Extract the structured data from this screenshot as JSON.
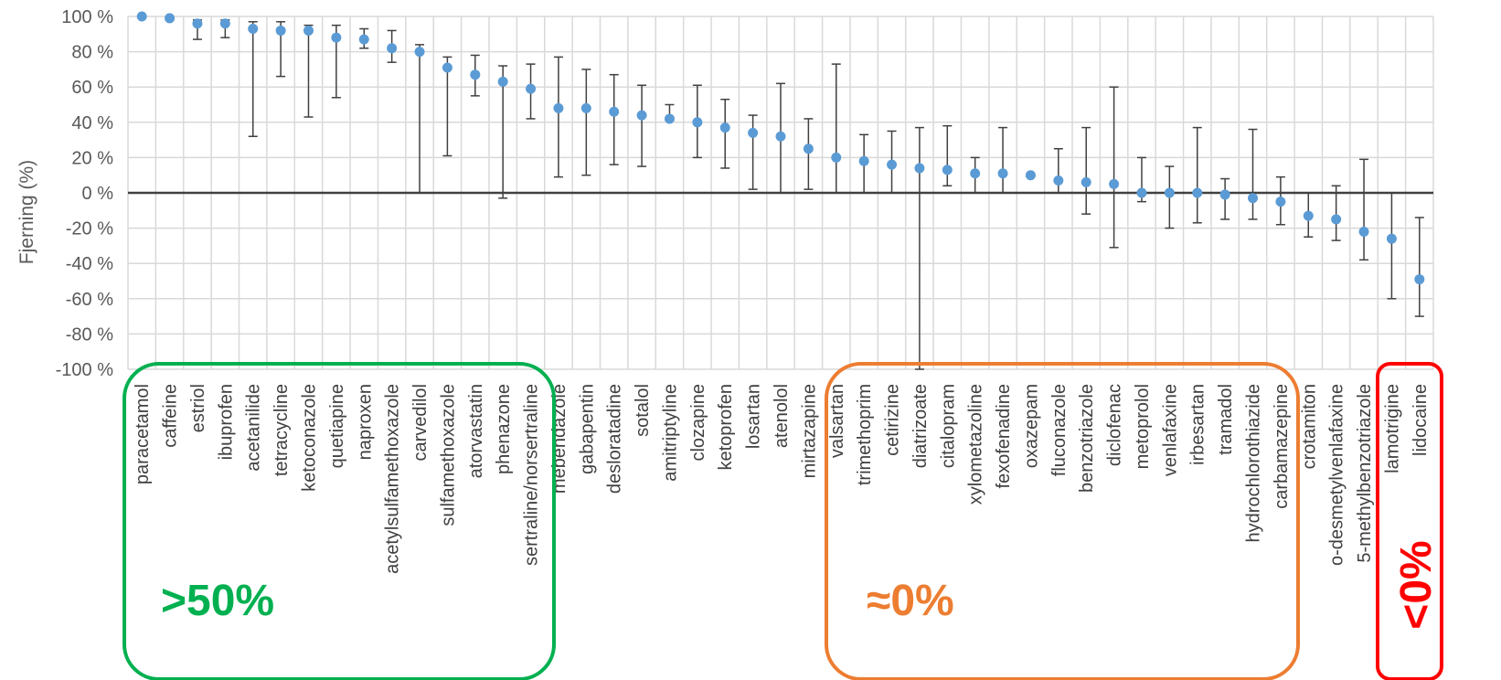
{
  "chart_data": {
    "type": "scatter",
    "title": "",
    "ylabel": "Fjerning (%)",
    "xlabel": "",
    "ylim": [
      -100,
      100
    ],
    "yticks": [
      -100,
      -80,
      -60,
      -40,
      -20,
      0,
      20,
      40,
      60,
      80,
      100
    ],
    "ytick_labels": [
      "-100 %",
      "-80 %",
      "-60 %",
      "-40 %",
      "-20 %",
      "0 %",
      "20 %",
      "40 %",
      "60 %",
      "80 %",
      "100 %"
    ],
    "grid": true,
    "point_color": "#5b9bd5",
    "errorbar_color": "#404040",
    "categories": [
      "paracetamol",
      "caffeine",
      "estriol",
      "ibuprofen",
      "acetanilide",
      "tetracycline",
      "ketoconazole",
      "quetiapine",
      "naproxen",
      "acetylsulfamethoxazole",
      "carvedilol",
      "sulfamethoxazole",
      "atorvastatin",
      "phenazone",
      "sertraline/norsertraline",
      "mebendazole",
      "gabapentin",
      "desloratadine",
      "sotalol",
      "amitriptyline",
      "clozapine",
      "ketoprofen",
      "losartan",
      "atenolol",
      "mirtazapine",
      "valsartan",
      "trimethoprim",
      "cetirizine",
      "diatrizoate",
      "citalopram",
      "xylometazoline",
      "fexofenadine",
      "oxazepam",
      "fluconazole",
      "benzotriazole",
      "diclofenac",
      "metoprolol",
      "venlafaxine",
      "irbesartan",
      "tramadol",
      "hydrochlorothiazide",
      "carbamazepine",
      "crotamiton",
      "o-desmetylvenlafaxine",
      "5-methylbenzotriazole",
      "lamotrigine",
      "lidocaine"
    ],
    "values": [
      100,
      99,
      96,
      96,
      93,
      92,
      92,
      88,
      87,
      82,
      80,
      71,
      67,
      63,
      59,
      48,
      48,
      46,
      44,
      42,
      40,
      37,
      34,
      32,
      25,
      20,
      18,
      16,
      14,
      13,
      11,
      11,
      10,
      7,
      6,
      5,
      0,
      0,
      0,
      -1,
      -3,
      -5,
      -13,
      -15,
      -22,
      -26,
      -49
    ],
    "err_high": [
      100,
      99,
      98,
      98,
      97,
      97,
      95,
      95,
      93,
      92,
      84,
      77,
      78,
      72,
      73,
      77,
      70,
      67,
      61,
      50,
      61,
      53,
      44,
      62,
      42,
      73,
      33,
      35,
      37,
      38,
      20,
      37,
      10,
      25,
      37,
      60,
      20,
      15,
      37,
      8,
      36,
      9,
      0,
      4,
      19,
      0,
      -14
    ],
    "err_low": [
      100,
      98,
      87,
      88,
      32,
      66,
      43,
      54,
      82,
      74,
      0,
      21,
      55,
      -3,
      42,
      9,
      10,
      16,
      15,
      41,
      20,
      14,
      2,
      0,
      2,
      0,
      0,
      0,
      -100,
      4,
      0,
      0,
      10,
      0,
      -12,
      -31,
      -5,
      -20,
      -17,
      -15,
      -15,
      -18,
      -25,
      -27,
      -38,
      -60,
      -70
    ],
    "groups": [
      {
        "label": ">50%",
        "color": "#00b050"
      },
      {
        "label": "≈0%",
        "color": "#ed7d31"
      },
      {
        "label": "<0%",
        "color": "#ff0000"
      }
    ]
  }
}
